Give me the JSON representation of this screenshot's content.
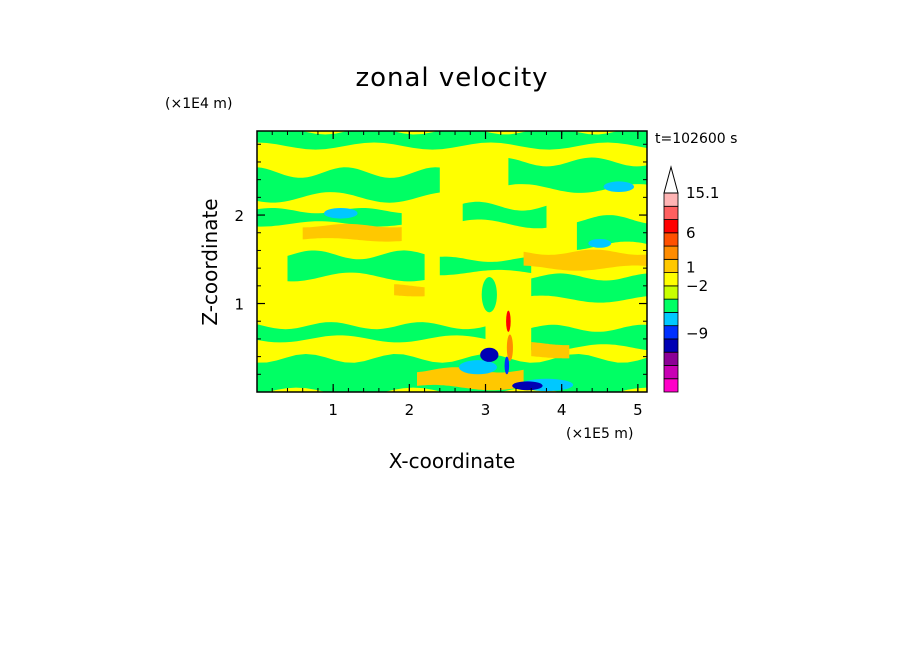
{
  "chart_data": {
    "type": "heatmap",
    "title": "zonal velocity",
    "xlabel": "X-coordinate",
    "ylabel": "Z-coordinate",
    "x_multiplier": "(×1E5 m)",
    "y_multiplier": "(×1E4 m)",
    "time_label": "t=102600 s",
    "xlim": [
      0,
      5.12
    ],
    "ylim": [
      0,
      2.95
    ],
    "x_ticks": [
      {
        "value": 1,
        "label": "1"
      },
      {
        "value": 2,
        "label": "2"
      },
      {
        "value": 3,
        "label": "3"
      },
      {
        "value": 4,
        "label": "4"
      },
      {
        "value": 5,
        "label": "5"
      }
    ],
    "y_ticks": [
      {
        "value": 1,
        "label": "1"
      },
      {
        "value": 2,
        "label": "2"
      }
    ],
    "colorbar": {
      "levels": [
        "#ff00c8",
        "#c800b4",
        "#8c0096",
        "#0000b4",
        "#0030ff",
        "#00c8ff",
        "#00ff64",
        "#c8ff00",
        "#ffff00",
        "#ffc800",
        "#ff8c00",
        "#ff5000",
        "#ff0000",
        "#ff5f5f",
        "#ffb4b4"
      ],
      "extend_color": "#ffffff",
      "labels": [
        {
          "level": 15,
          "text": "15.1"
        },
        {
          "level": 12,
          "text": "6"
        },
        {
          "level": 9.4,
          "text": "1"
        },
        {
          "level": 8,
          "text": "−2"
        },
        {
          "level": 4.4,
          "text": "−9"
        }
      ]
    },
    "field": {
      "background": "#ffff00",
      "bands": [
        {
          "color": "#00ff64",
          "x0": 0,
          "x1": 5.12,
          "y0": 2.78,
          "y1": 2.95,
          "wave": 0.04
        },
        {
          "color": "#00ff64",
          "x0": 0,
          "x1": 2.4,
          "y0": 2.2,
          "y1": 2.48,
          "wave": 0.06
        },
        {
          "color": "#00ff64",
          "x0": 3.3,
          "x1": 5.12,
          "y0": 2.3,
          "y1": 2.6,
          "wave": 0.05
        },
        {
          "color": "#00ff64",
          "x0": 2.7,
          "x1": 3.8,
          "y0": 1.9,
          "y1": 2.1,
          "wave": 0.05
        },
        {
          "color": "#00ff64",
          "x0": 0,
          "x1": 1.9,
          "y0": 1.9,
          "y1": 2.05,
          "wave": 0.03
        },
        {
          "color": "#00ff64",
          "x0": 4.2,
          "x1": 5.12,
          "y0": 1.65,
          "y1": 1.95,
          "wave": 0.05
        },
        {
          "color": "#00ff64",
          "x0": 0.4,
          "x1": 2.2,
          "y0": 1.3,
          "y1": 1.55,
          "wave": 0.05
        },
        {
          "color": "#00ff64",
          "x0": 3.6,
          "x1": 5.12,
          "y0": 1.05,
          "y1": 1.3,
          "wave": 0.04
        },
        {
          "color": "#00ff64",
          "x0": 2.4,
          "x1": 3.6,
          "y0": 1.35,
          "y1": 1.5,
          "wave": 0.03
        },
        {
          "color": "#00ff64",
          "x0": 0,
          "x1": 3.0,
          "y0": 0.6,
          "y1": 0.75,
          "wave": 0.04
        },
        {
          "color": "#00ff64",
          "x0": 0,
          "x1": 5.12,
          "y0": 0.0,
          "y1": 0.38,
          "wave": 0.05
        },
        {
          "color": "#00ff64",
          "x0": 3.6,
          "x1": 5.12,
          "y0": 0.5,
          "y1": 0.72,
          "wave": 0.04
        },
        {
          "color": "#ffc800",
          "x0": 0.6,
          "x1": 1.9,
          "y0": 1.72,
          "y1": 1.88,
          "wave": 0.02
        },
        {
          "color": "#ffc800",
          "x0": 3.5,
          "x1": 5.12,
          "y0": 1.4,
          "y1": 1.58,
          "wave": 0.03
        },
        {
          "color": "#ffc800",
          "x0": 1.8,
          "x1": 2.2,
          "y0": 1.1,
          "y1": 1.2,
          "wave": 0.02
        },
        {
          "color": "#ffc800",
          "x0": 2.1,
          "x1": 3.5,
          "y0": 0.05,
          "y1": 0.25,
          "wave": 0.03
        },
        {
          "color": "#ffc800",
          "x0": 3.6,
          "x1": 4.1,
          "y0": 0.4,
          "y1": 0.55,
          "wave": 0.02
        }
      ],
      "blobs": [
        {
          "color": "#00c8ff",
          "x": 4.75,
          "y": 2.32,
          "rx": 0.2,
          "ry": 0.06
        },
        {
          "color": "#00c8ff",
          "x": 1.1,
          "y": 2.02,
          "rx": 0.22,
          "ry": 0.06
        },
        {
          "color": "#00c8ff",
          "x": 4.5,
          "y": 1.68,
          "rx": 0.15,
          "ry": 0.05
        },
        {
          "color": "#00c8ff",
          "x": 2.9,
          "y": 0.28,
          "rx": 0.25,
          "ry": 0.08
        },
        {
          "color": "#00c8ff",
          "x": 3.8,
          "y": 0.08,
          "rx": 0.35,
          "ry": 0.07
        },
        {
          "color": "#0000b4",
          "x": 3.05,
          "y": 0.42,
          "rx": 0.12,
          "ry": 0.08
        },
        {
          "color": "#0000b4",
          "x": 3.55,
          "y": 0.07,
          "rx": 0.2,
          "ry": 0.05
        },
        {
          "color": "#00ff64",
          "x": 3.05,
          "y": 1.1,
          "rx": 0.1,
          "ry": 0.2
        },
        {
          "color": "#ff0000",
          "x": 3.3,
          "y": 0.8,
          "rx": 0.03,
          "ry": 0.12
        },
        {
          "color": "#ff8c00",
          "x": 3.32,
          "y": 0.5,
          "rx": 0.04,
          "ry": 0.15
        },
        {
          "color": "#0030ff",
          "x": 3.28,
          "y": 0.3,
          "rx": 0.03,
          "ry": 0.1
        }
      ]
    }
  }
}
